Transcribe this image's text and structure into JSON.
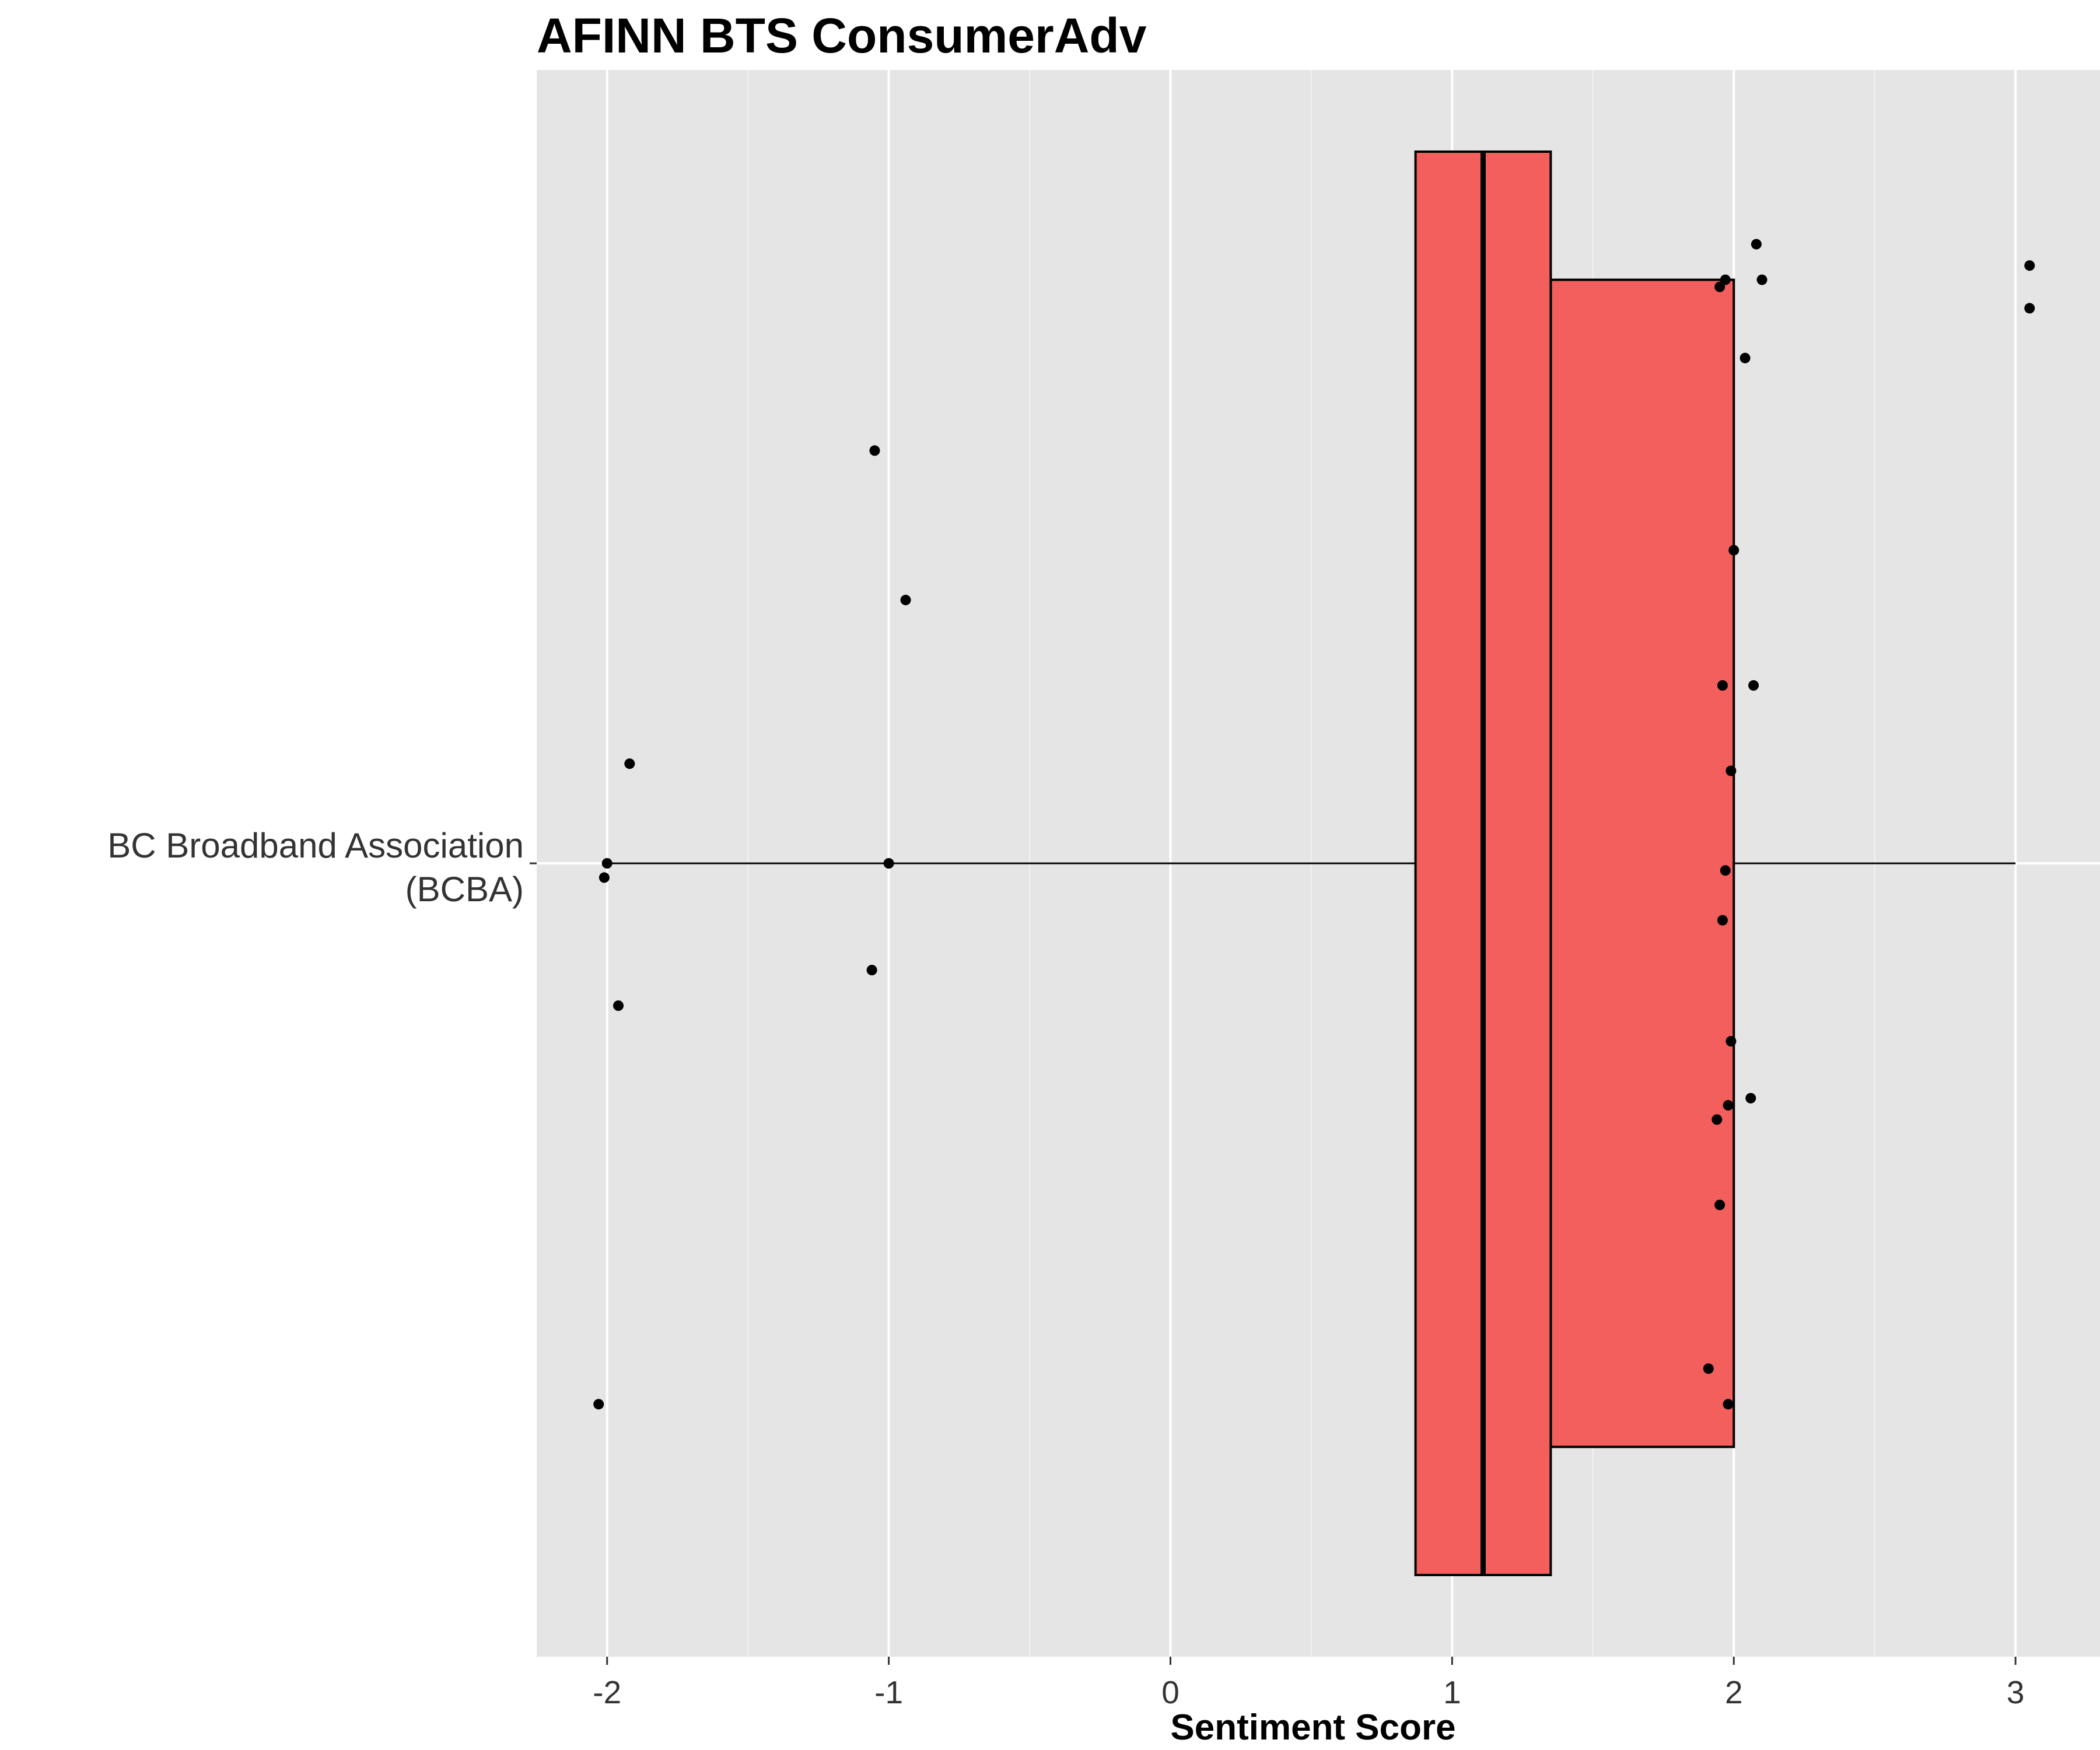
{
  "chart_data": {
    "type": "boxplot",
    "title": "AFINN BTS ConsumerAdv",
    "xlabel": "Sentiment Score",
    "ylabel": "",
    "orientation": "horizontal",
    "xlim": [
      -2.25,
      3.3
    ],
    "x_ticks": [
      -2,
      -1,
      0,
      1,
      2,
      3
    ],
    "x_tick_labels": [
      "-2",
      "-1",
      "0",
      "1",
      "2",
      "3"
    ],
    "category": {
      "line1": "BC Broadband Association",
      "line2": "(BCBA)"
    },
    "box": {
      "notched": true,
      "min": -2,
      "q1": 0.87,
      "median": 1.11,
      "q3": 2,
      "max": 3,
      "notch_low": 0.87,
      "notch_high": 1.35
    },
    "fill_color": "#F25F5C",
    "panel_background": "#E5E5E5",
    "grid": true,
    "points": [
      {
        "x": 2.08,
        "y": 0.87
      },
      {
        "x": 3.05,
        "y": 0.84
      },
      {
        "x": 3.05,
        "y": 0.78
      },
      {
        "x": 1.97,
        "y": 0.82
      },
      {
        "x": 1.95,
        "y": 0.81
      },
      {
        "x": 2.1,
        "y": 0.82
      },
      {
        "x": 2.04,
        "y": 0.71
      },
      {
        "x": -1.05,
        "y": 0.58
      },
      {
        "x": 2.0,
        "y": 0.44
      },
      {
        "x": -0.94,
        "y": 0.37
      },
      {
        "x": 2.07,
        "y": 0.25
      },
      {
        "x": 1.96,
        "y": 0.25
      },
      {
        "x": -1.92,
        "y": 0.14
      },
      {
        "x": 1.99,
        "y": 0.13
      },
      {
        "x": -2.0,
        "y": 0.0
      },
      {
        "x": -1.0,
        "y": 0.0
      },
      {
        "x": 1.97,
        "y": -0.01
      },
      {
        "x": -2.01,
        "y": -0.02
      },
      {
        "x": 1.96,
        "y": -0.08
      },
      {
        "x": -1.06,
        "y": -0.15
      },
      {
        "x": -1.96,
        "y": -0.2
      },
      {
        "x": 1.99,
        "y": -0.25
      },
      {
        "x": 2.06,
        "y": -0.33
      },
      {
        "x": 1.98,
        "y": -0.34
      },
      {
        "x": 1.94,
        "y": -0.36
      },
      {
        "x": 1.95,
        "y": -0.48
      },
      {
        "x": 1.91,
        "y": -0.71
      },
      {
        "x": 1.98,
        "y": -0.76
      },
      {
        "x": -2.03,
        "y": -0.76
      }
    ]
  }
}
